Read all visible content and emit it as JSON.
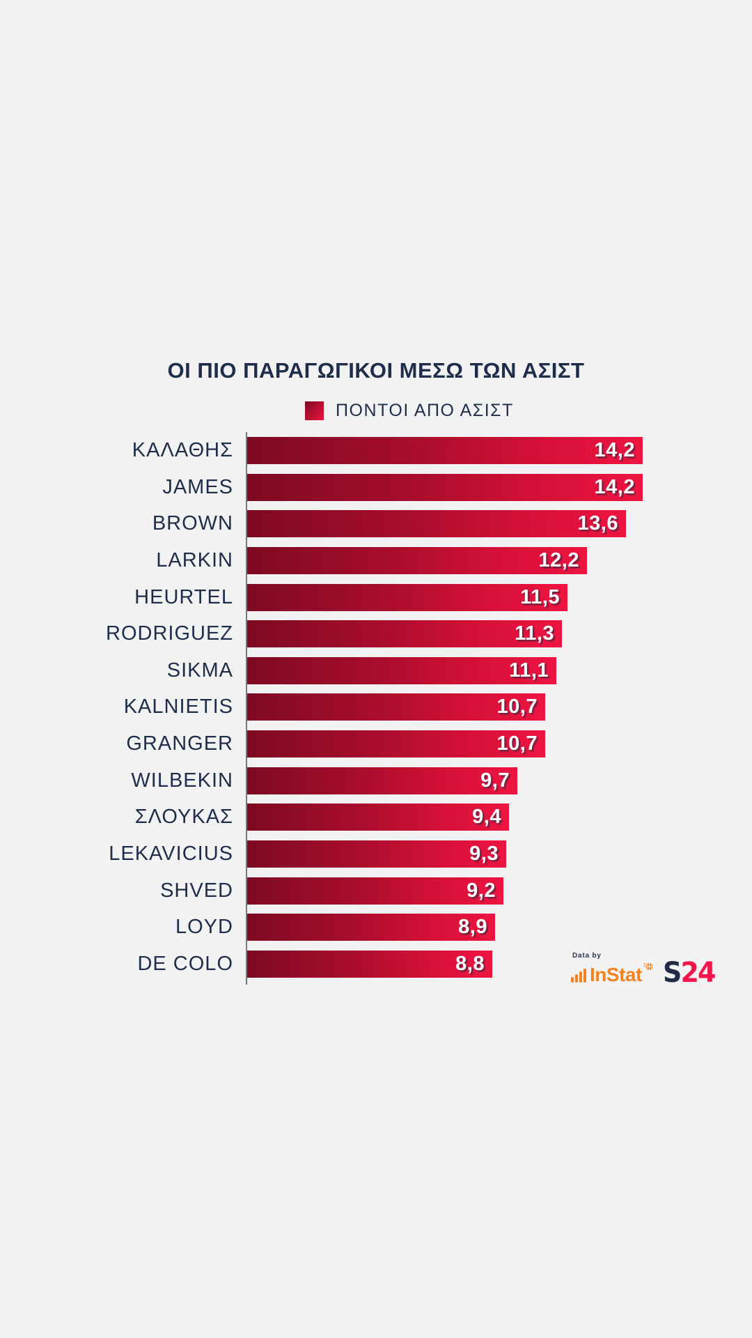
{
  "chart": {
    "title": "ΟΙ ΠΙΟ ΠΑΡΑΓΩΓΙΚΟΙ ΜΕΣΩ ΤΩΝ ΑΣΙΣΤ",
    "legend_label": "ΠΟΝΤΟΙ ΑΠΟ ΑΣΙΣΤ"
  },
  "chart_data": {
    "type": "bar",
    "orientation": "horizontal",
    "title": "ΟΙ ΠΙΟ ΠΑΡΑΓΩΓΙΚΟΙ ΜΕΣΩ ΤΩΝ ΑΣΙΣΤ",
    "legend": [
      "ΠΟΝΤΟΙ ΑΠΟ ΑΣΙΣΤ"
    ],
    "legend_position": "top-center",
    "categories": [
      "ΚΑΛΑΘΗΣ",
      "JAMES",
      "BROWN",
      "LARKIN",
      "HEURTEL",
      "RODRIGUEZ",
      "SIKMA",
      "KALNIETIS",
      "GRANGER",
      "WILBEKIN",
      "ΣΛΟΥΚΑΣ",
      "LEKAVICIUS",
      "SHVED",
      "LOYD",
      "DE COLO"
    ],
    "values": [
      14.2,
      14.2,
      13.6,
      12.2,
      11.5,
      11.3,
      11.1,
      10.7,
      10.7,
      9.7,
      9.4,
      9.3,
      9.2,
      8.9,
      8.8
    ],
    "value_labels": [
      "14,2",
      "14,2",
      "13,6",
      "12,2",
      "11,5",
      "11,3",
      "11,1",
      "10,7",
      "10,7",
      "9,7",
      "9,4",
      "9,3",
      "9,2",
      "8,9",
      "8,8"
    ],
    "xlim": [
      0,
      14.2
    ],
    "grid": false,
    "bars_sorted_descending": true
  },
  "branding": {
    "data_by_label": "Data by",
    "instat_label": "InStat",
    "s24_part1": "S",
    "s24_part2": "24"
  },
  "colors": {
    "background": "#f2f2f3",
    "bar_dark": "#7e0a22",
    "bar_bright": "#ee1441",
    "navy": "#1e2d49",
    "axis_gray": "#77777c",
    "instat_orange": "#f58220",
    "s24_red": "#f1174a"
  }
}
